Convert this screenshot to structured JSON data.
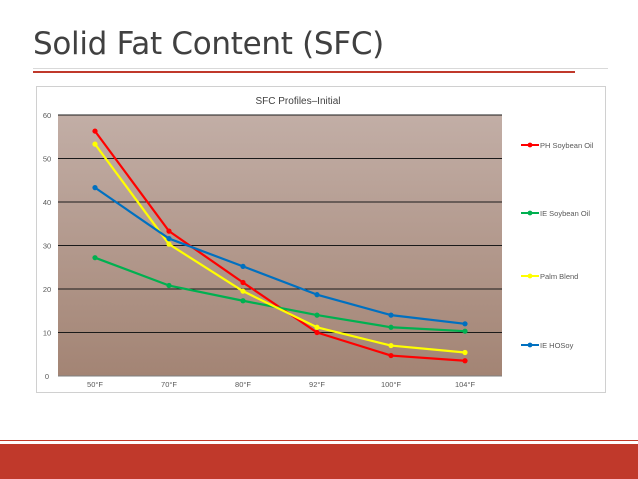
{
  "slide": {
    "title": "Solid Fat Content (SFC)"
  },
  "chart_data": {
    "type": "line",
    "title": "SFC Profiles–Initial",
    "xlabel": "",
    "ylabel": "",
    "categories": [
      "50°F",
      "70°F",
      "80°F",
      "92°F",
      "100°F",
      "104°F"
    ],
    "ylim": [
      0,
      60
    ],
    "yticks": [
      0,
      10,
      20,
      30,
      40,
      50,
      60
    ],
    "grid": true,
    "legend": "right",
    "plot_background": "#a4877a",
    "series": [
      {
        "name": "PH Soybean Oil",
        "color": "#ff0000",
        "values": [
          56.3,
          33.3,
          21.5,
          10.0,
          4.7,
          3.5
        ]
      },
      {
        "name": "IE Soybean Oil",
        "color": "#00b050",
        "values": [
          27.2,
          20.8,
          17.3,
          14.0,
          11.2,
          10.3
        ]
      },
      {
        "name": "Palm Blend",
        "color": "#ffff00",
        "values": [
          53.3,
          30.3,
          19.5,
          11.2,
          7.0,
          5.4
        ]
      },
      {
        "name": "IE HOSoy",
        "color": "#0070c0",
        "values": [
          43.3,
          31.6,
          25.2,
          18.7,
          14.0,
          12.0
        ]
      }
    ]
  }
}
